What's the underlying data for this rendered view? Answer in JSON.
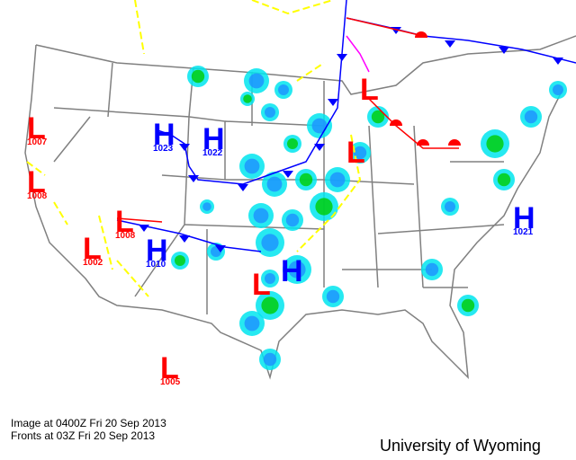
{
  "caption": {
    "image_time": "Image at 0400Z Fri 20 Sep 2013",
    "fronts_time": "Fronts at 03Z Fri 20 Sep 2013"
  },
  "credit": "University of Wyoming",
  "colors": {
    "high": "#0000ff",
    "low": "#ff0000",
    "cold_front": "#0000ff",
    "warm_front": "#ff0000",
    "occluded_front": "#ff00ff",
    "trough": "#ffff00",
    "borders": "#808080",
    "radar_light": "#00e5ee",
    "radar_mid": "#1e90ff",
    "radar_heavy": "#0000cd",
    "radar_green": "#00cc00"
  },
  "pressure_systems": [
    {
      "type": "L",
      "pressure": "1007"
    },
    {
      "type": "L",
      "pressure": "1008"
    },
    {
      "type": "H",
      "pressure": "1023"
    },
    {
      "type": "H",
      "pressure": "1022"
    },
    {
      "type": "L",
      "pressure": "1008"
    },
    {
      "type": "H",
      "pressure": "1010"
    },
    {
      "type": "L",
      "pressure": "1002"
    },
    {
      "type": "L",
      "pressure": ""
    },
    {
      "type": "H",
      "pressure": ""
    },
    {
      "type": "L",
      "pressure": ""
    },
    {
      "type": "L",
      "pressure": ""
    },
    {
      "type": "H",
      "pressure": "1021"
    },
    {
      "type": "L",
      "pressure": "1005"
    }
  ]
}
